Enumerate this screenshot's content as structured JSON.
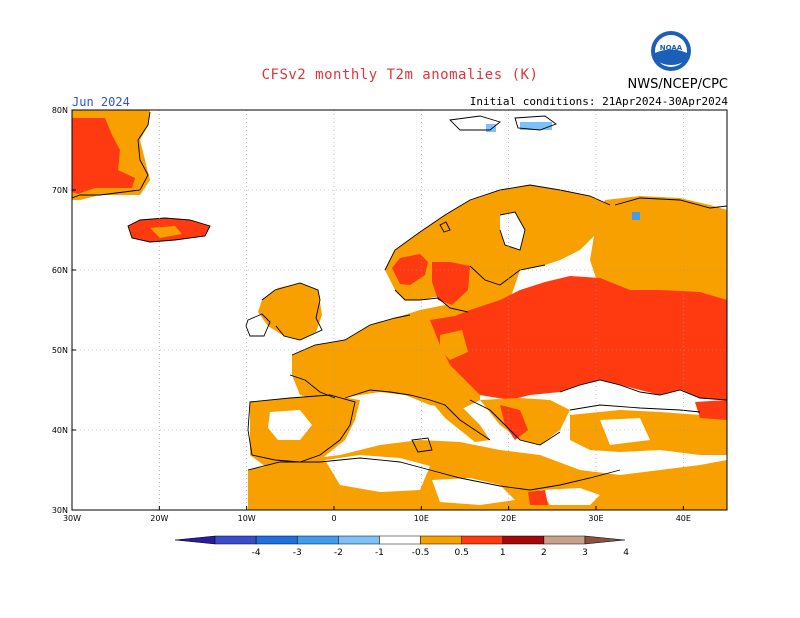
{
  "header": {
    "title": "CFSv2 monthly T2m anomalies (K)",
    "organization": "NWS/NCEP/CPC",
    "logo_text": "NOAA",
    "valid_month": "Jun 2024",
    "initial_conditions": "Initial conditions: 21Apr2024-30Apr2024"
  },
  "axes": {
    "lat_labels": [
      "80N",
      "70N",
      "60N",
      "50N",
      "40N",
      "30N"
    ],
    "lon_labels": [
      "30W",
      "20W",
      "10W",
      "0",
      "10E",
      "20E",
      "30E",
      "40E"
    ]
  },
  "colorbar": {
    "labels": [
      "-4",
      "-3",
      "-2",
      "-1",
      "-0.5",
      "0.5",
      "1",
      "2",
      "3",
      "4"
    ],
    "colors": [
      "#2a1c9c",
      "#3a4ccc",
      "#1f6fe0",
      "#3f9cf0",
      "#7ec0f8",
      "#ffffff",
      "#f7a000",
      "#ff3a10",
      "#a40808",
      "#c8a08c",
      "#8a5040"
    ]
  },
  "colors": {
    "warm_1": "#f7a000",
    "warm_2": "#ff3a10",
    "cool_1": "#7ec0f8",
    "cool_2": "#3f9cf0",
    "coastline": "#000000",
    "grid": "#999999"
  }
}
